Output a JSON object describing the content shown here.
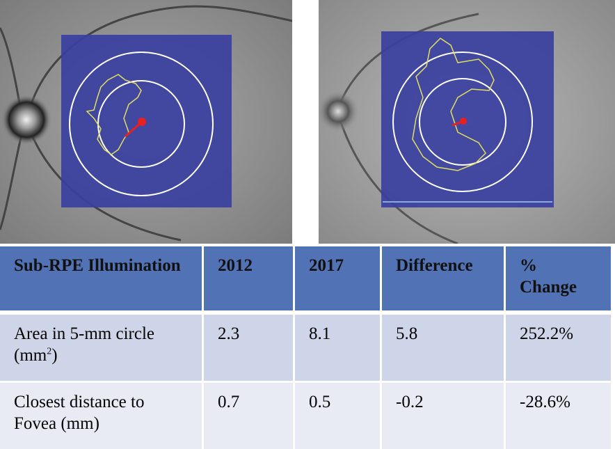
{
  "figure": {
    "images": [
      {
        "name": "2012 fundus image with sub-RPE illumination map",
        "overlay_color": "#3a3fa0",
        "contour_color": "#e0e060",
        "marker_color": "#e82020"
      },
      {
        "name": "2017 fundus image with sub-RPE illumination map",
        "overlay_color": "#3a3fa0",
        "contour_color": "#e0e060",
        "marker_color": "#e82020"
      }
    ]
  },
  "table": {
    "headers": [
      "Sub-RPE Illumination",
      "2012",
      "2017",
      "Difference",
      "% Change"
    ],
    "rows": [
      {
        "label": "Area in 5-mm circle (mm",
        "label_sup": "2",
        "label_end": ")",
        "values": [
          "2.3",
          "8.1",
          "5.8",
          "252.2%"
        ]
      },
      {
        "label": "Closest distance to Fovea (mm)",
        "values": [
          "0.7",
          "0.5",
          "-0.2",
          "-28.6%"
        ]
      }
    ],
    "header_color": "#5172b4",
    "row_colors": [
      "#cfd5e8",
      "#e8ebf4"
    ]
  }
}
